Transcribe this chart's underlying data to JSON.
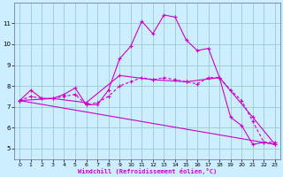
{
  "xlabel": "Windchill (Refroidissement éolien,°C)",
  "background_color": "#cceeff",
  "grid_color": "#99cccc",
  "line_color": "#cc00cc",
  "xlim": [
    -0.5,
    23.5
  ],
  "ylim": [
    4.5,
    12.0
  ],
  "yticks": [
    5,
    6,
    7,
    8,
    9,
    10,
    11
  ],
  "xticks": [
    0,
    1,
    2,
    3,
    4,
    5,
    6,
    7,
    8,
    9,
    10,
    11,
    12,
    13,
    14,
    15,
    16,
    17,
    18,
    19,
    20,
    21,
    22,
    23
  ],
  "curve1_x": [
    0,
    1,
    2,
    3,
    4,
    5,
    6,
    7,
    8,
    9,
    10,
    11,
    12,
    13,
    14,
    15,
    16,
    17,
    18,
    19,
    20,
    21,
    22,
    23
  ],
  "curve1_y": [
    7.3,
    7.8,
    7.4,
    7.4,
    7.6,
    7.9,
    7.1,
    7.1,
    7.8,
    9.3,
    9.9,
    11.1,
    10.5,
    11.4,
    11.3,
    10.2,
    9.7,
    9.8,
    8.4,
    6.5,
    6.1,
    5.2,
    5.3,
    5.2
  ],
  "curve2_x": [
    0,
    1,
    2,
    3,
    4,
    5,
    6,
    7,
    8,
    9,
    10,
    11,
    12,
    13,
    14,
    15,
    16,
    17,
    18,
    19,
    20,
    21,
    22,
    23
  ],
  "curve2_y": [
    7.3,
    7.5,
    7.4,
    7.4,
    7.5,
    7.6,
    7.1,
    7.2,
    7.5,
    8.0,
    8.2,
    8.4,
    8.3,
    8.4,
    8.3,
    8.2,
    8.1,
    8.4,
    8.4,
    7.8,
    7.3,
    6.3,
    5.3,
    5.3
  ],
  "curve3_x": [
    0,
    3,
    6,
    9,
    12,
    15,
    18,
    21,
    23
  ],
  "curve3_y": [
    7.3,
    7.4,
    7.2,
    8.5,
    8.3,
    8.2,
    8.4,
    6.5,
    5.2
  ],
  "curve4_x": [
    0,
    23
  ],
  "curve4_y": [
    7.3,
    5.2
  ]
}
